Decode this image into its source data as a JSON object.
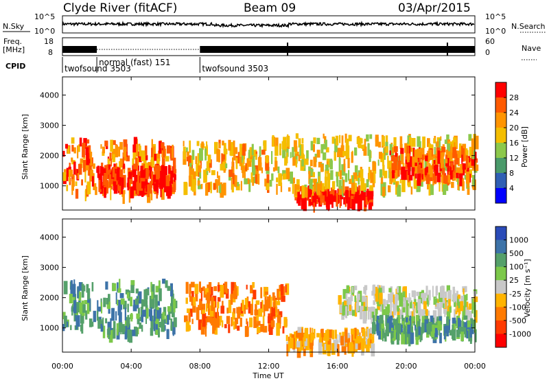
{
  "header": {
    "station": "Clyde River (fitACF)",
    "beam": "Beam 09",
    "date": "03/Apr/2015"
  },
  "top_panels": {
    "nsky_label": "N.Sky",
    "nsky_ticks": [
      "10^5",
      "10^0"
    ],
    "nsearch_label": "N.Search",
    "freq_label_line1": "Freq.",
    "freq_label_line2": "[MHz]",
    "freq_ticks": [
      "18",
      "8"
    ],
    "nave_label": "Nave",
    "nave_ticks": [
      "60",
      "0"
    ],
    "cpid_label": "CPID",
    "cpid_segments": [
      {
        "label": "twofsound 3503",
        "start_hour": 0.0,
        "end_hour": 2.0
      },
      {
        "label": "normal (fast) 151",
        "start_hour": 2.0,
        "end_hour": 8.0
      },
      {
        "label": "twofsound 3503",
        "start_hour": 8.0,
        "end_hour": 24.0
      }
    ]
  },
  "panels": {
    "power": {
      "ylabel": "Slant Range [km]",
      "colorbar_label": "Power [dB]",
      "colorbar_ticks": [
        "28",
        "24",
        "20",
        "16",
        "12",
        "8",
        "4"
      ],
      "colors": [
        "#ff0000",
        "#ff5a00",
        "#ff9400",
        "#f4be00",
        "#8cc84b",
        "#4a9a6a",
        "#2f5fb4",
        "#0000ff"
      ]
    },
    "velocity": {
      "ylabel": "Slant Range [km]",
      "colorbar_label": "Velocity [m s⁻¹]",
      "colorbar_ticks": [
        "1000",
        "500",
        "100",
        "25",
        "-25",
        "-100",
        "-500",
        "-1000"
      ],
      "colors": [
        "#2a4bb8",
        "#3d73a8",
        "#55a06a",
        "#7cc84a",
        "#c8c8c8",
        "#ffb400",
        "#ff7a00",
        "#ff3a00",
        "#ff0000"
      ]
    }
  },
  "x_axis": {
    "label": "Time UT",
    "ticks": [
      "00:00",
      "04:00",
      "08:00",
      "12:00",
      "16:00",
      "20:00",
      "00:00"
    ]
  },
  "chart_data": {
    "type": "heatmap",
    "title": "Clyde River (fitACF)  Beam 09  03/Apr/2015",
    "xlabel": "Time UT",
    "ylabel": "Slant Range [km]",
    "xlim_hours": [
      0,
      24
    ],
    "ylim_km": [
      200,
      4600
    ],
    "y_ticks": [
      1000,
      2000,
      3000,
      4000
    ],
    "power_regions": [
      {
        "t0": 0.0,
        "t1": 6.5,
        "r0": 700,
        "r1": 2500,
        "level_db": 22
      },
      {
        "t0": 2.0,
        "t1": 6.5,
        "r0": 800,
        "r1": 1600,
        "level_db": 28
      },
      {
        "t0": 7.0,
        "t1": 12.0,
        "r0": 900,
        "r1": 2400,
        "level_db": 18
      },
      {
        "t0": 13.5,
        "t1": 18.0,
        "r0": 400,
        "r1": 900,
        "level_db": 28
      },
      {
        "t0": 12.0,
        "t1": 24.0,
        "r0": 800,
        "r1": 2600,
        "level_db": 16
      },
      {
        "t0": 19.0,
        "t1": 24.0,
        "r0": 1200,
        "r1": 2200,
        "level_db": 24
      }
    ],
    "velocity_regions": [
      {
        "t0": 0.0,
        "t1": 6.5,
        "r0": 800,
        "r1": 2500,
        "velocity": 100
      },
      {
        "t0": 7.0,
        "t1": 13.0,
        "r0": 900,
        "r1": 2400,
        "velocity": -500
      },
      {
        "t0": 13.0,
        "t1": 18.0,
        "r0": 300,
        "r1": 900,
        "velocity": -100
      },
      {
        "t0": 16.0,
        "t1": 24.0,
        "r0": 1400,
        "r1": 2300,
        "velocity": -25
      },
      {
        "t0": 18.0,
        "t1": 24.0,
        "r0": 700,
        "r1": 1300,
        "velocity": 100
      }
    ]
  }
}
